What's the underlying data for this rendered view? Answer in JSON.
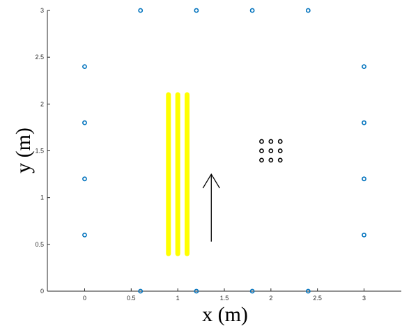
{
  "chart_data": {
    "type": "scatter",
    "title": "",
    "xlabel": "x (m)",
    "ylabel": "y (m)",
    "xlim": [
      -0.4,
      3.4
    ],
    "ylim": [
      0,
      3
    ],
    "grid": false,
    "x_ticks": [
      0,
      0.5,
      1,
      1.5,
      2,
      2.5,
      3
    ],
    "x_tick_labels": [
      "0",
      "0.5",
      "1",
      "1.5",
      "2",
      "2.5",
      "3"
    ],
    "y_ticks": [
      0,
      0.5,
      1,
      1.5,
      2,
      2.5,
      3
    ],
    "y_tick_labels": [
      "0",
      "0.5",
      "1",
      "1.5",
      "2",
      "2.5",
      "3"
    ],
    "series": [
      {
        "marker": "open-circle",
        "color": "#0072BD",
        "points": [
          [
            0.6,
            3
          ],
          [
            1.2,
            3
          ],
          [
            1.8,
            3
          ],
          [
            2.4,
            3
          ],
          [
            0.6,
            0
          ],
          [
            1.2,
            0
          ],
          [
            1.8,
            0
          ],
          [
            2.4,
            0
          ],
          [
            0,
            2.4
          ],
          [
            0,
            1.8
          ],
          [
            0,
            1.2
          ],
          [
            0,
            0.6
          ],
          [
            3,
            2.4
          ],
          [
            3,
            1.8
          ],
          [
            3,
            1.2
          ],
          [
            3,
            0.6
          ]
        ]
      },
      {
        "marker": "open-circle",
        "color": "#000000",
        "points": [
          [
            1.9,
            1.6
          ],
          [
            2.0,
            1.6
          ],
          [
            2.1,
            1.6
          ],
          [
            1.9,
            1.5
          ],
          [
            2.0,
            1.5
          ],
          [
            2.1,
            1.5
          ],
          [
            1.9,
            1.4
          ],
          [
            2.0,
            1.4
          ],
          [
            2.1,
            1.4
          ]
        ]
      }
    ],
    "bars": {
      "color": "#FFFF00",
      "segments": [
        {
          "x": 0.9,
          "y0": 0.4,
          "y1": 2.1
        },
        {
          "x": 1.0,
          "y0": 0.4,
          "y1": 2.1
        },
        {
          "x": 1.1,
          "y0": 0.4,
          "y1": 2.1
        }
      ]
    },
    "arrow": {
      "x": 1.36,
      "y0": 0.53,
      "y1": 1.25,
      "color": "#000000"
    }
  }
}
